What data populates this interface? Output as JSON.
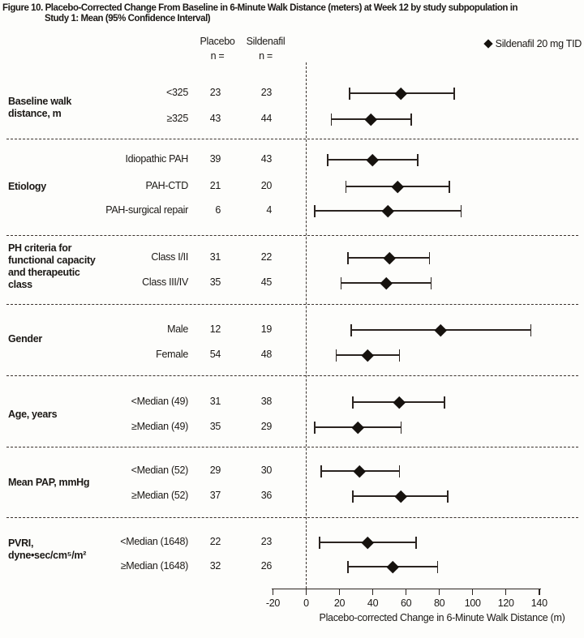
{
  "title": {
    "line1": "Figure 10. Placebo-Corrected Change From Baseline in 6-Minute Walk Distance (meters) at Week 12 by study subpopulation in",
    "line2": "Study 1: Mean (95% Confidence Interval)"
  },
  "columns": {
    "placebo": "Placebo",
    "sildenafil": "Sildenafil",
    "n_label": "n ="
  },
  "legend": {
    "marker_shape": "diamond",
    "label": "Sildenafil 20 mg TID"
  },
  "chart_data": {
    "type": "forest",
    "title": "Placebo-Corrected Change From Baseline in 6-Minute Walk Distance (meters) at Week 12 by study subpopulation in Study 1: Mean (95% Confidence Interval)",
    "xlabel": "Placebo-corrected Change in 6-Minute Walk Distance (m)",
    "xlim": [
      -20,
      140
    ],
    "x_ticks": [
      -20,
      0,
      20,
      40,
      60,
      80,
      100,
      120,
      140
    ],
    "reference_line_x": 0,
    "series_label": "Sildenafil 20 mg TID",
    "grid": false,
    "legend_position": "top-right",
    "groups": [
      {
        "label": "Baseline walk distance, m",
        "label_lines": [
          "Baseline walk",
          "distance, m"
        ],
        "rows": [
          {
            "subgroup": "<325",
            "placebo_n": 23,
            "sildenafil_n": 23,
            "mean": 57,
            "ci": [
              26,
              89
            ]
          },
          {
            "subgroup": "≥325",
            "placebo_n": 43,
            "sildenafil_n": 44,
            "mean": 39,
            "ci": [
              15,
              63
            ]
          }
        ]
      },
      {
        "label": "Etiology",
        "label_lines": [
          "Etiology"
        ],
        "rows": [
          {
            "subgroup": "Idiopathic PAH",
            "placebo_n": 39,
            "sildenafil_n": 43,
            "mean": 40,
            "ci": [
              13,
              67
            ]
          },
          {
            "subgroup": "PAH-CTD",
            "placebo_n": 21,
            "sildenafil_n": 20,
            "mean": 55,
            "ci": [
              24,
              86
            ]
          },
          {
            "subgroup": "PAH-surgical repair",
            "placebo_n": 6,
            "sildenafil_n": 4,
            "mean": 49,
            "ci": [
              5,
              93
            ]
          }
        ]
      },
      {
        "label": "PH criteria for functional capacity and therapeutic class",
        "label_lines": [
          "PH criteria for",
          "functional capacity",
          "and therapeutic",
          "class"
        ],
        "rows": [
          {
            "subgroup": "Class I/II",
            "placebo_n": 31,
            "sildenafil_n": 22,
            "mean": 50,
            "ci": [
              25,
              74
            ]
          },
          {
            "subgroup": "Class III/IV",
            "placebo_n": 35,
            "sildenafil_n": 45,
            "mean": 48,
            "ci": [
              21,
              75
            ]
          }
        ]
      },
      {
        "label": "Gender",
        "label_lines": [
          "Gender"
        ],
        "rows": [
          {
            "subgroup": "Male",
            "placebo_n": 12,
            "sildenafil_n": 19,
            "mean": 81,
            "ci": [
              27,
              135
            ]
          },
          {
            "subgroup": "Female",
            "placebo_n": 54,
            "sildenafil_n": 48,
            "mean": 37,
            "ci": [
              18,
              56
            ]
          }
        ]
      },
      {
        "label": "Age, years",
        "label_lines": [
          "Age, years"
        ],
        "rows": [
          {
            "subgroup": "<Median (49)",
            "placebo_n": 31,
            "sildenafil_n": 38,
            "mean": 56,
            "ci": [
              28,
              83
            ]
          },
          {
            "subgroup": "≥Median (49)",
            "placebo_n": 35,
            "sildenafil_n": 29,
            "mean": 31,
            "ci": [
              5,
              57
            ]
          }
        ]
      },
      {
        "label": "Mean PAP, mmHg",
        "label_lines": [
          "Mean PAP, mmHg"
        ],
        "rows": [
          {
            "subgroup": "<Median (52)",
            "placebo_n": 29,
            "sildenafil_n": 30,
            "mean": 32,
            "ci": [
              9,
              56
            ]
          },
          {
            "subgroup": "≥Median (52)",
            "placebo_n": 37,
            "sildenafil_n": 36,
            "mean": 57,
            "ci": [
              28,
              85
            ]
          }
        ]
      },
      {
        "label": "PVRI, dyne•sec/cm⁵/m²",
        "label_lines": [
          "PVRI,",
          "dyne•sec/cm⁵/m²"
        ],
        "rows": [
          {
            "subgroup": "<Median (1648)",
            "placebo_n": 22,
            "sildenafil_n": 23,
            "mean": 37,
            "ci": [
              8,
              66
            ]
          },
          {
            "subgroup": "≥Median (1648)",
            "placebo_n": 32,
            "sildenafil_n": 26,
            "mean": 52,
            "ci": [
              25,
              79
            ]
          }
        ]
      }
    ]
  }
}
